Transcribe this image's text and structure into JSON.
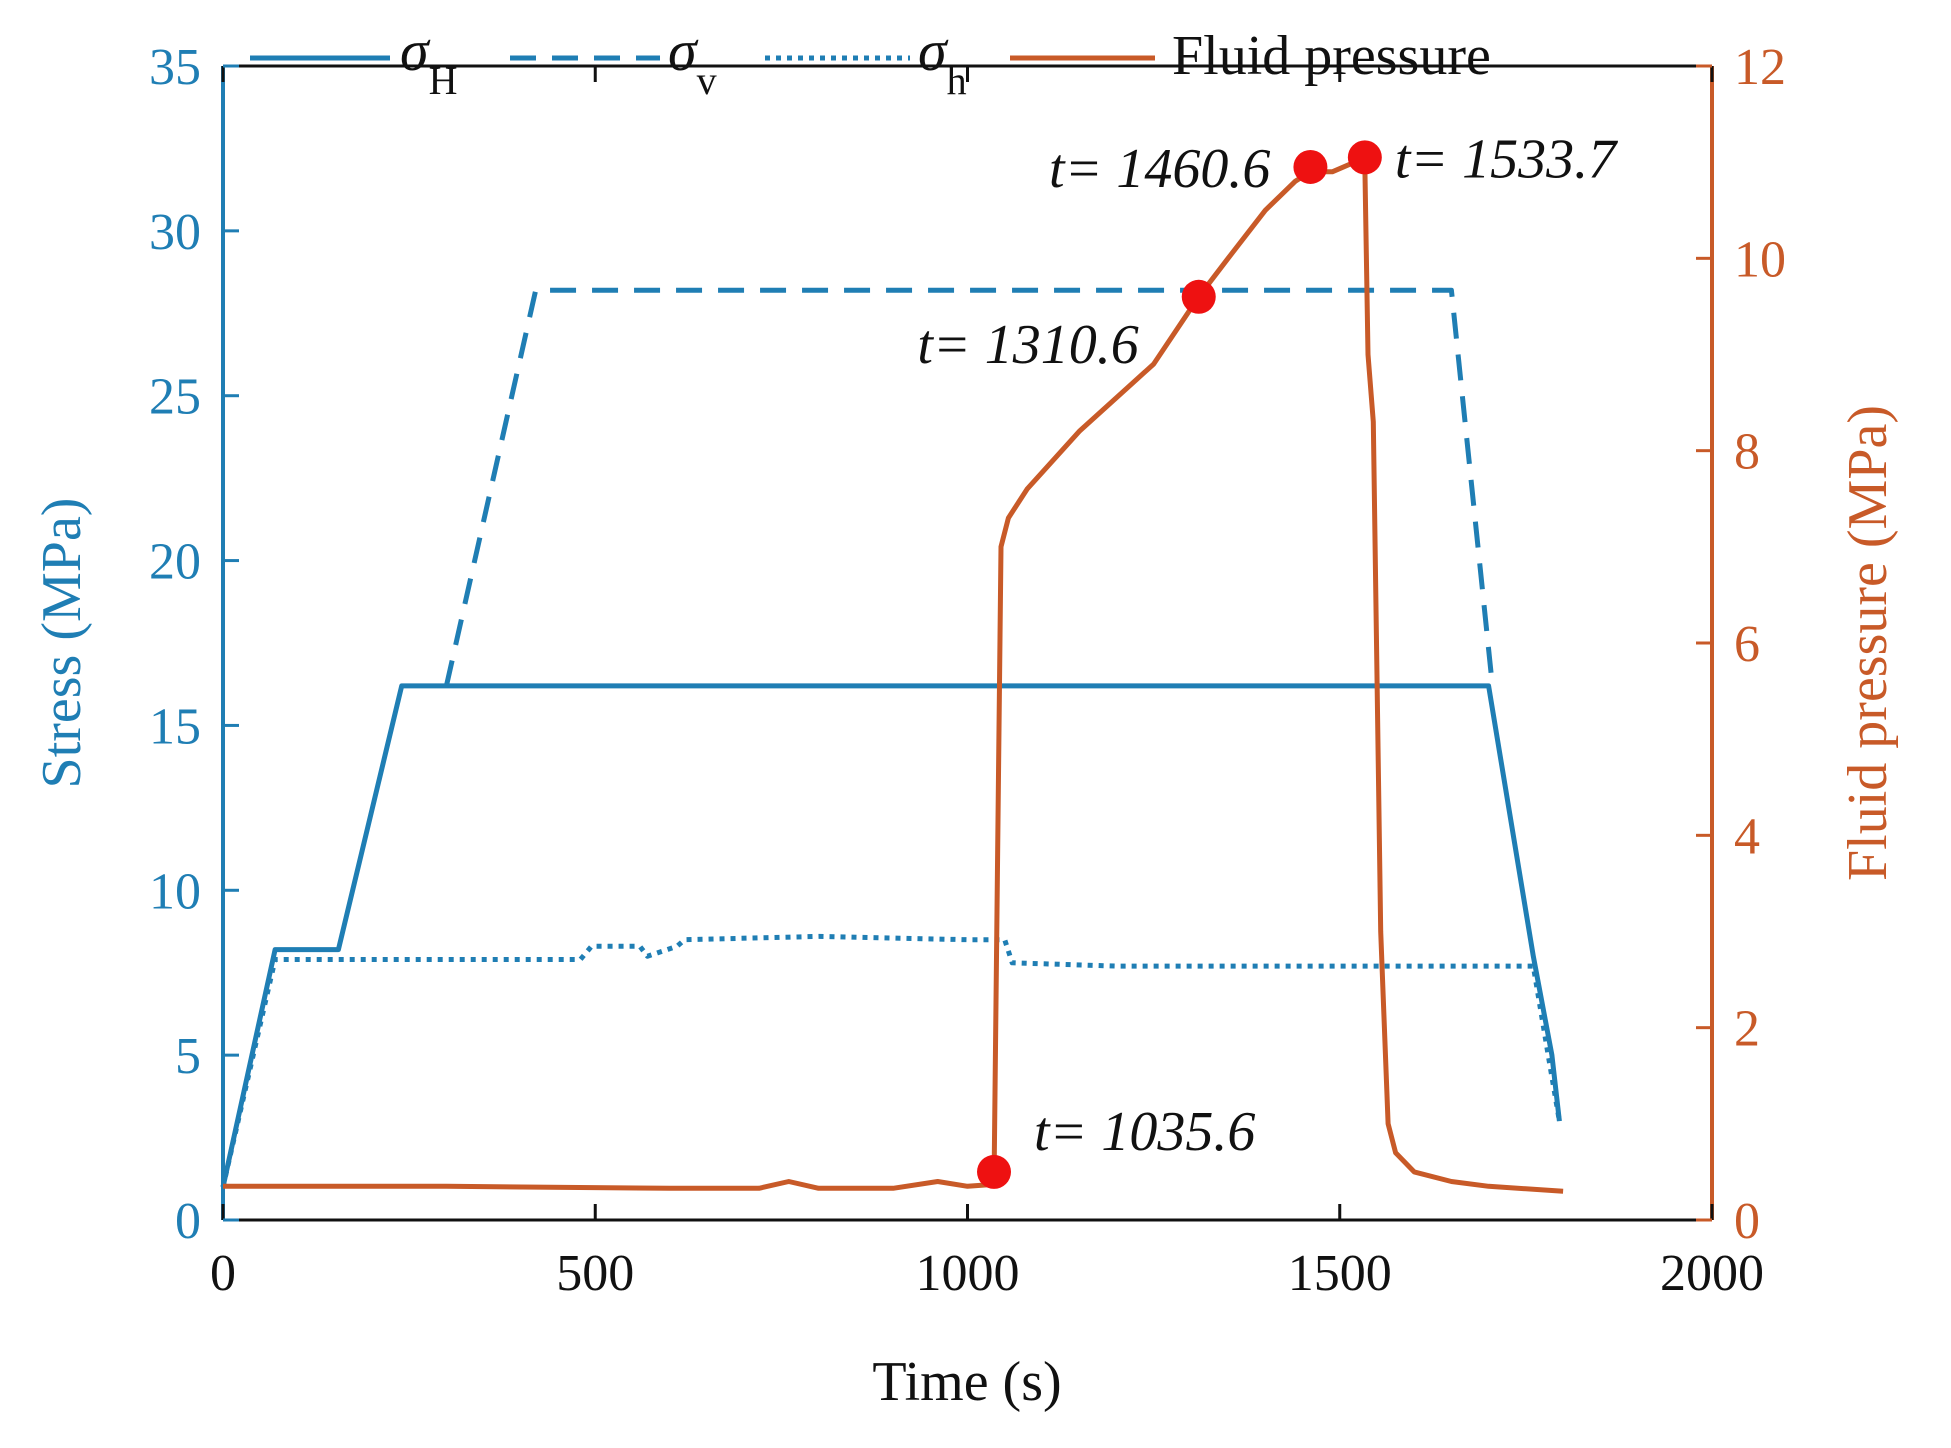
{
  "chart_data": {
    "type": "line",
    "title": "",
    "xlabel": "Time (s)",
    "ylabel_left": "Stress (MPa)",
    "ylabel_right": "Fluid pressure (MPa)",
    "xlim": [
      0,
      2000
    ],
    "ylim_left": [
      0,
      35
    ],
    "ylim_right": [
      0,
      12
    ],
    "x_ticks": [
      "0",
      "500",
      "1000",
      "1500",
      "2000"
    ],
    "y_left_ticks": [
      "0",
      "5",
      "10",
      "15",
      "20",
      "25",
      "30",
      "35"
    ],
    "y_right_ticks": [
      "0",
      "2",
      "4",
      "6",
      "8",
      "10",
      "12"
    ],
    "legend": {
      "position": "top",
      "entries": [
        {
          "symbol": "σ",
          "sub": "H",
          "style": "solid"
        },
        {
          "symbol": "σ",
          "sub": "v",
          "style": "dashed"
        },
        {
          "symbol": "σ",
          "sub": "h",
          "style": "dotted"
        },
        {
          "symbol": "",
          "sub": "",
          "label": "Fluid pressure",
          "style": "solid"
        }
      ]
    },
    "colors": {
      "stress": "#1f7eb4",
      "fluid": "#c85a28",
      "marker": "#ee1111"
    },
    "series": [
      {
        "name": "σH",
        "axis": "left",
        "style": "solid",
        "x": [
          0,
          70,
          155,
          240,
          1700,
          1760,
          1785,
          1795
        ],
        "y": [
          1.0,
          8.2,
          8.2,
          16.2,
          16.2,
          8.0,
          5.0,
          3.0
        ]
      },
      {
        "name": "σv",
        "axis": "left",
        "style": "dashed",
        "x": [
          300,
          420,
          1650,
          1705
        ],
        "y": [
          16.2,
          28.2,
          28.2,
          16.2
        ]
      },
      {
        "name": "σh",
        "axis": "left",
        "style": "dotted",
        "x": [
          0,
          70,
          480,
          495,
          560,
          570,
          610,
          620,
          800,
          1000,
          1050,
          1060,
          1200,
          1500,
          1760,
          1780,
          1795
        ],
        "y": [
          1.0,
          7.9,
          7.9,
          8.3,
          8.3,
          8.0,
          8.3,
          8.5,
          8.6,
          8.5,
          8.5,
          7.8,
          7.7,
          7.7,
          7.7,
          5.0,
          3.0
        ]
      },
      {
        "name": "Fluid pressure",
        "axis": "right",
        "style": "solid",
        "x": [
          0,
          300,
          600,
          720,
          760,
          800,
          900,
          960,
          1000,
          1035.6,
          1045,
          1055,
          1080,
          1150,
          1250,
          1310.6,
          1350,
          1400,
          1440,
          1460.6,
          1490,
          1520,
          1533.7,
          1538,
          1545,
          1555,
          1565,
          1575,
          1600,
          1650,
          1700,
          1800
        ],
        "y": [
          0.35,
          0.35,
          0.33,
          0.33,
          0.4,
          0.33,
          0.33,
          0.4,
          0.35,
          0.37,
          7.0,
          7.3,
          7.6,
          8.2,
          8.9,
          9.6,
          10.0,
          10.5,
          10.8,
          10.9,
          10.9,
          11.0,
          11.0,
          9.0,
          8.3,
          3.0,
          1.0,
          0.7,
          0.5,
          0.4,
          0.35,
          0.3
        ]
      }
    ],
    "annotations": [
      {
        "text": "t= 1035.6",
        "x": 1035.6,
        "y_right": 0.5
      },
      {
        "text": "t= 1310.6",
        "x": 1310.6,
        "y_right": 9.6
      },
      {
        "text": "t= 1460.6",
        "x": 1460.6,
        "y_right": 10.95
      },
      {
        "text": "t= 1533.7",
        "x": 1533.7,
        "y_right": 11.05
      }
    ]
  }
}
